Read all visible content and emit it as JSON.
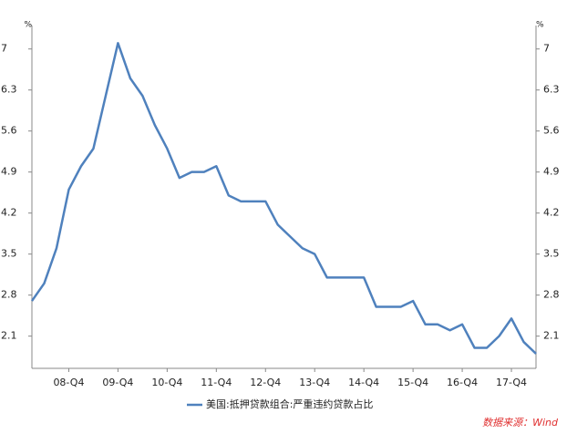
{
  "chart_data": {
    "type": "line",
    "categories": [
      null,
      null,
      null,
      "08-Q4",
      null,
      null,
      null,
      "09-Q4",
      null,
      null,
      null,
      "10-Q4",
      null,
      null,
      null,
      "11-Q4",
      null,
      null,
      null,
      "12-Q4",
      null,
      null,
      null,
      "13-Q4",
      null,
      null,
      null,
      "14-Q4",
      null,
      null,
      null,
      "15-Q4",
      null,
      null,
      null,
      "16-Q4",
      null,
      null,
      null,
      "17-Q4",
      null,
      null
    ],
    "series": [
      {
        "name": "美国:抵押贷款组合:严重违约贷款占比",
        "color": "#4f81bd",
        "values": [
          2.7,
          3.0,
          3.6,
          4.6,
          5.0,
          5.3,
          6.2,
          7.1,
          6.5,
          6.2,
          5.7,
          5.3,
          4.8,
          4.9,
          4.9,
          5.0,
          4.5,
          4.4,
          4.4,
          4.4,
          4.0,
          3.8,
          3.6,
          3.5,
          3.1,
          3.1,
          3.1,
          3.1,
          2.6,
          2.6,
          2.6,
          2.7,
          2.3,
          2.3,
          2.2,
          2.3,
          1.9,
          1.9,
          2.1,
          2.4,
          2.0,
          1.8
        ]
      }
    ],
    "ylim": [
      1.55,
      7.4
    ],
    "yticks": [
      2.1,
      2.8,
      3.5,
      4.2,
      4.9,
      5.6,
      6.3,
      7.0
    ],
    "y2lim": [
      1.55,
      7.4
    ],
    "y2ticks": [
      2.1,
      2.8,
      3.5,
      4.2,
      4.9,
      5.6,
      6.3,
      7.0
    ],
    "y_unit": "%",
    "y2_unit": "%",
    "source": "数据来源：Wind"
  }
}
